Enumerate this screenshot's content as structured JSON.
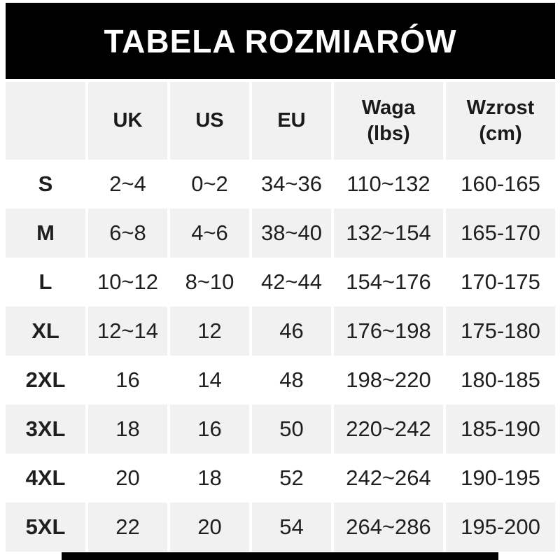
{
  "title": "TABELA ROZMIARÓW",
  "header": {
    "col0": "",
    "col1": "UK",
    "col2": "US",
    "col3": "EU",
    "col4_top": "Waga",
    "col4_bottom": "(lbs)",
    "col5_top": "Wzrost",
    "col5_bottom": "(cm)"
  },
  "chart_data": {
    "type": "table",
    "title": "TABELA ROZMIARÓW",
    "columns": [
      "",
      "UK",
      "US",
      "EU",
      "Waga (lbs)",
      "Wzrost (cm)"
    ],
    "rows": [
      [
        "S",
        "2~4",
        "0~2",
        "34~36",
        "110~132",
        "160-165"
      ],
      [
        "M",
        "6~8",
        "4~6",
        "38~40",
        "132~154",
        "165-170"
      ],
      [
        "L",
        "10~12",
        "8~10",
        "42~44",
        "154~176",
        "170-175"
      ],
      [
        "XL",
        "12~14",
        "12",
        "46",
        "176~198",
        "175-180"
      ],
      [
        "2XL",
        "16",
        "14",
        "48",
        "198~220",
        "180-185"
      ],
      [
        "3XL",
        "18",
        "16",
        "50",
        "220~242",
        "185-190"
      ],
      [
        "4XL",
        "20",
        "18",
        "52",
        "242~264",
        "190-195"
      ],
      [
        "5XL",
        "22",
        "20",
        "54",
        "264~286",
        "195-200"
      ]
    ],
    "layout": {
      "row_alternation": "white/gray starting white",
      "legend": "none",
      "grid": "white gutters between gray cells"
    }
  },
  "colors": {
    "banner_bg": "#000000",
    "banner_text": "#ffffff",
    "row_alt_bg": "#f1f1f2",
    "text": "#1f1f1f",
    "page_bg": "#ffffff",
    "bottom_bar": "#000000"
  }
}
